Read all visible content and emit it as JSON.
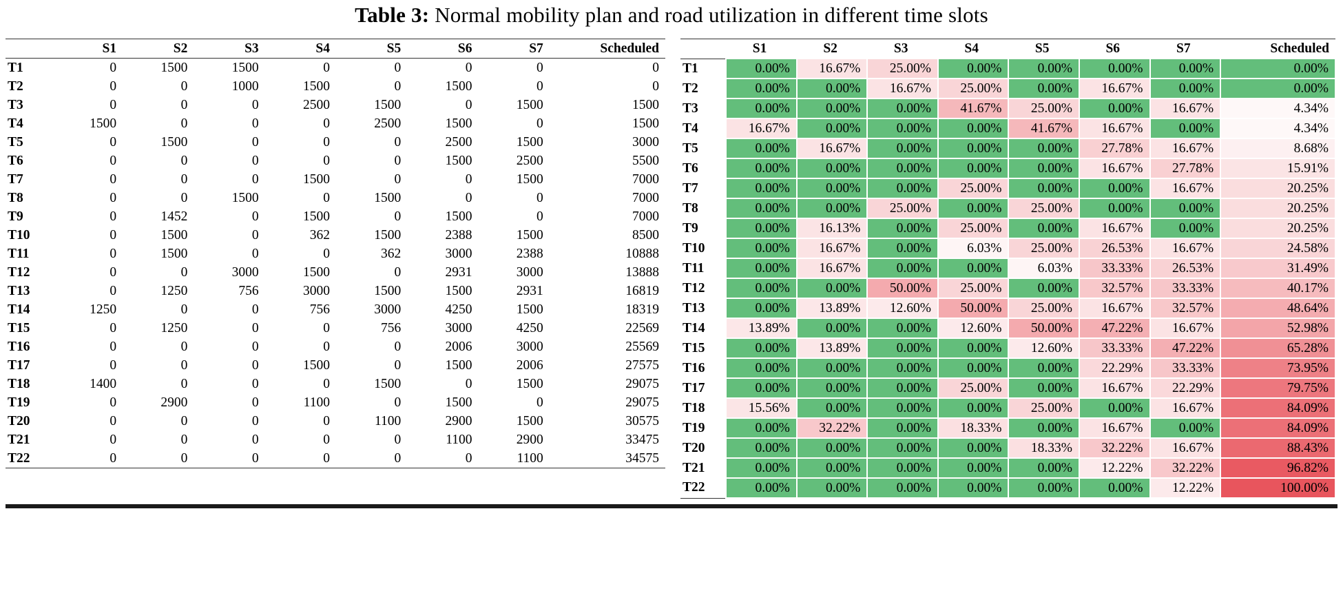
{
  "caption": {
    "prefix": "Table 3:",
    "text": "Normal mobility plan and road utilization in different time slots"
  },
  "columns": [
    "S1",
    "S2",
    "S3",
    "S4",
    "S5",
    "S6",
    "S7",
    "Scheduled"
  ],
  "row_labels": [
    "T1",
    "T2",
    "T3",
    "T4",
    "T5",
    "T6",
    "T7",
    "T8",
    "T9",
    "T10",
    "T11",
    "T12",
    "T13",
    "T14",
    "T15",
    "T16",
    "T17",
    "T18",
    "T19",
    "T20",
    "T21",
    "T22"
  ],
  "mobility_plan": {
    "rows": [
      [
        0,
        1500,
        1500,
        0,
        0,
        0,
        0,
        0
      ],
      [
        0,
        0,
        1000,
        1500,
        0,
        1500,
        0,
        0
      ],
      [
        0,
        0,
        0,
        2500,
        1500,
        0,
        1500,
        1500
      ],
      [
        1500,
        0,
        0,
        0,
        2500,
        1500,
        0,
        1500
      ],
      [
        0,
        1500,
        0,
        0,
        0,
        2500,
        1500,
        3000
      ],
      [
        0,
        0,
        0,
        0,
        0,
        1500,
        2500,
        5500
      ],
      [
        0,
        0,
        0,
        1500,
        0,
        0,
        1500,
        7000
      ],
      [
        0,
        0,
        1500,
        0,
        1500,
        0,
        0,
        7000
      ],
      [
        0,
        1452,
        0,
        1500,
        0,
        1500,
        0,
        7000
      ],
      [
        0,
        1500,
        0,
        362,
        1500,
        2388,
        1500,
        8500
      ],
      [
        0,
        1500,
        0,
        0,
        362,
        3000,
        2388,
        10888
      ],
      [
        0,
        0,
        3000,
        1500,
        0,
        2931,
        3000,
        13888
      ],
      [
        0,
        1250,
        756,
        3000,
        1500,
        1500,
        2931,
        16819
      ],
      [
        1250,
        0,
        0,
        756,
        3000,
        4250,
        1500,
        18319
      ],
      [
        0,
        1250,
        0,
        0,
        756,
        3000,
        4250,
        22569
      ],
      [
        0,
        0,
        0,
        0,
        0,
        2006,
        3000,
        25569
      ],
      [
        0,
        0,
        0,
        1500,
        0,
        1500,
        2006,
        27575
      ],
      [
        1400,
        0,
        0,
        0,
        1500,
        0,
        1500,
        29075
      ],
      [
        0,
        2900,
        0,
        1100,
        0,
        1500,
        0,
        29075
      ],
      [
        0,
        0,
        0,
        0,
        1100,
        2900,
        1500,
        30575
      ],
      [
        0,
        0,
        0,
        0,
        0,
        1100,
        2900,
        33475
      ],
      [
        0,
        0,
        0,
        0,
        0,
        0,
        1100,
        34575
      ]
    ]
  },
  "road_utilization": {
    "rows": [
      [
        "0.00%",
        "16.67%",
        "25.00%",
        "0.00%",
        "0.00%",
        "0.00%",
        "0.00%",
        "0.00%"
      ],
      [
        "0.00%",
        "0.00%",
        "16.67%",
        "25.00%",
        "0.00%",
        "16.67%",
        "0.00%",
        "0.00%"
      ],
      [
        "0.00%",
        "0.00%",
        "0.00%",
        "41.67%",
        "25.00%",
        "0.00%",
        "16.67%",
        "4.34%"
      ],
      [
        "16.67%",
        "0.00%",
        "0.00%",
        "0.00%",
        "41.67%",
        "16.67%",
        "0.00%",
        "4.34%"
      ],
      [
        "0.00%",
        "16.67%",
        "0.00%",
        "0.00%",
        "0.00%",
        "27.78%",
        "16.67%",
        "8.68%"
      ],
      [
        "0.00%",
        "0.00%",
        "0.00%",
        "0.00%",
        "0.00%",
        "16.67%",
        "27.78%",
        "15.91%"
      ],
      [
        "0.00%",
        "0.00%",
        "0.00%",
        "25.00%",
        "0.00%",
        "0.00%",
        "16.67%",
        "20.25%"
      ],
      [
        "0.00%",
        "0.00%",
        "25.00%",
        "0.00%",
        "25.00%",
        "0.00%",
        "0.00%",
        "20.25%"
      ],
      [
        "0.00%",
        "16.13%",
        "0.00%",
        "25.00%",
        "0.00%",
        "16.67%",
        "0.00%",
        "20.25%"
      ],
      [
        "0.00%",
        "16.67%",
        "0.00%",
        "6.03%",
        "25.00%",
        "26.53%",
        "16.67%",
        "24.58%"
      ],
      [
        "0.00%",
        "16.67%",
        "0.00%",
        "0.00%",
        "6.03%",
        "33.33%",
        "26.53%",
        "31.49%"
      ],
      [
        "0.00%",
        "0.00%",
        "50.00%",
        "25.00%",
        "0.00%",
        "32.57%",
        "33.33%",
        "40.17%"
      ],
      [
        "0.00%",
        "13.89%",
        "12.60%",
        "50.00%",
        "25.00%",
        "16.67%",
        "32.57%",
        "48.64%"
      ],
      [
        "13.89%",
        "0.00%",
        "0.00%",
        "12.60%",
        "50.00%",
        "47.22%",
        "16.67%",
        "52.98%"
      ],
      [
        "0.00%",
        "13.89%",
        "0.00%",
        "0.00%",
        "12.60%",
        "33.33%",
        "47.22%",
        "65.28%"
      ],
      [
        "0.00%",
        "0.00%",
        "0.00%",
        "0.00%",
        "0.00%",
        "22.29%",
        "33.33%",
        "73.95%"
      ],
      [
        "0.00%",
        "0.00%",
        "0.00%",
        "25.00%",
        "0.00%",
        "16.67%",
        "22.29%",
        "79.75%"
      ],
      [
        "15.56%",
        "0.00%",
        "0.00%",
        "0.00%",
        "25.00%",
        "0.00%",
        "16.67%",
        "84.09%"
      ],
      [
        "0.00%",
        "32.22%",
        "0.00%",
        "18.33%",
        "0.00%",
        "16.67%",
        "0.00%",
        "84.09%"
      ],
      [
        "0.00%",
        "0.00%",
        "0.00%",
        "0.00%",
        "18.33%",
        "32.22%",
        "16.67%",
        "88.43%"
      ],
      [
        "0.00%",
        "0.00%",
        "0.00%",
        "0.00%",
        "0.00%",
        "12.22%",
        "32.22%",
        "96.82%"
      ],
      [
        "0.00%",
        "0.00%",
        "0.00%",
        "0.00%",
        "0.00%",
        "0.00%",
        "12.22%",
        "100.00%"
      ]
    ]
  },
  "colors": {
    "zero_fill": "#63be7b",
    "max_fill": "#e8555d",
    "rule": "#1a1a1a"
  }
}
